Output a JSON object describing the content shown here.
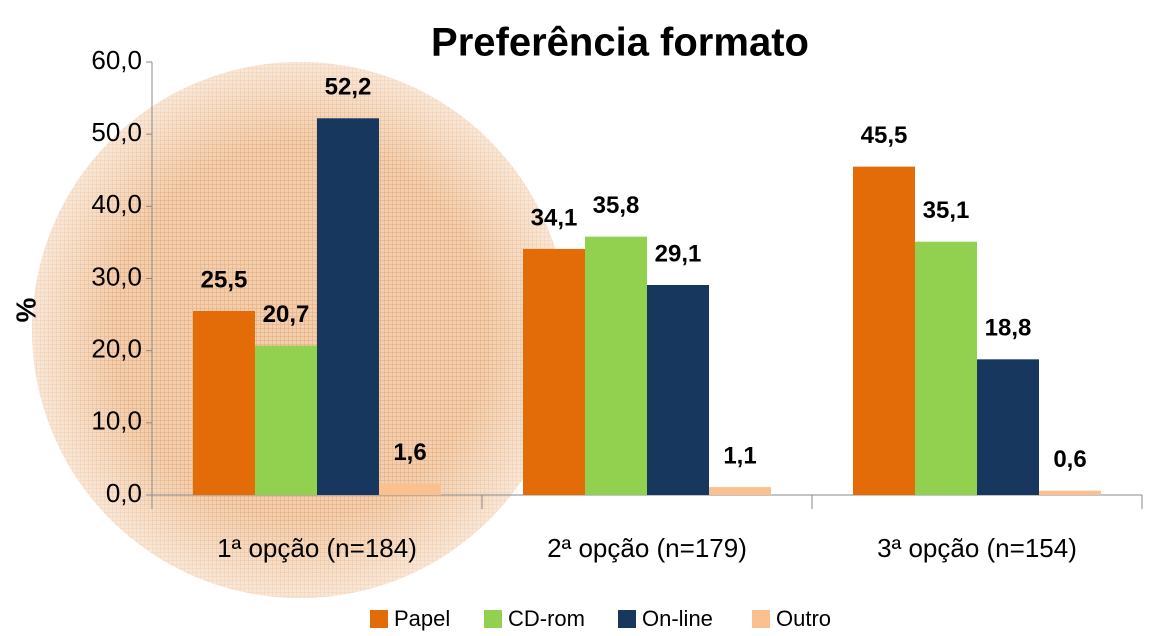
{
  "chart_data": {
    "type": "bar",
    "title": "Preferência formato",
    "y_label": "%",
    "categories": [
      "1ª opção (n=184)",
      "2ª opção (n=179)",
      "3ª opção (n=154)"
    ],
    "series": [
      {
        "name": "Papel",
        "color": "#e36c09",
        "values": [
          25.5,
          34.1,
          45.5
        ],
        "value_labels": [
          "25,5",
          "34,1",
          "45,5"
        ]
      },
      {
        "name": "CD-rom",
        "color": "#92d050",
        "values": [
          20.7,
          35.8,
          35.1
        ],
        "value_labels": [
          "20,7",
          "35,8",
          "35,1"
        ]
      },
      {
        "name": "On-line",
        "color": "#17375e",
        "values": [
          52.2,
          29.1,
          18.8
        ],
        "value_labels": [
          "52,2",
          "29,1",
          "18,8"
        ]
      },
      {
        "name": "Outro",
        "color": "#fac090",
        "values": [
          1.6,
          1.1,
          0.6
        ],
        "value_labels": [
          "1,6",
          "1,1",
          "0,6"
        ]
      }
    ],
    "ylim": [
      0,
      60
    ],
    "yticks": [
      {
        "value": 0,
        "label": "0,0"
      },
      {
        "value": 10,
        "label": "10,0"
      },
      {
        "value": 20,
        "label": "20,0"
      },
      {
        "value": 30,
        "label": "30,0"
      },
      {
        "value": 40,
        "label": "40,0"
      },
      {
        "value": 50,
        "label": "50,0"
      },
      {
        "value": 60,
        "label": "60,0"
      }
    ],
    "legend": "bottom"
  }
}
